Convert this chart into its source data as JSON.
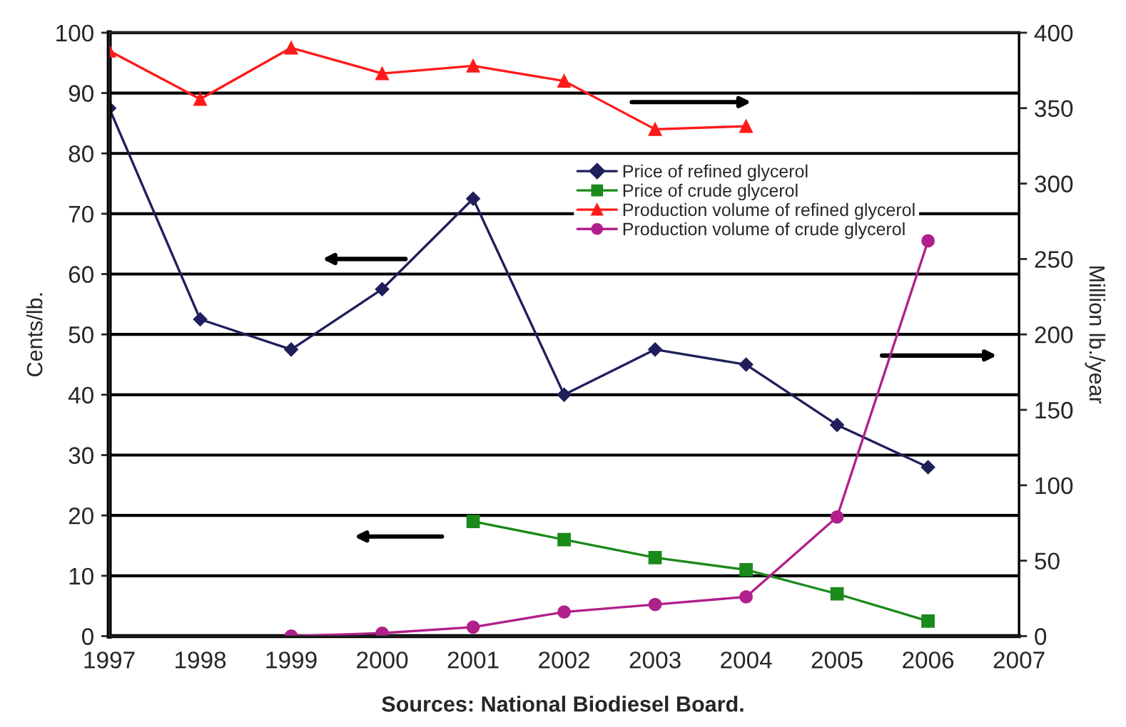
{
  "chart_data": {
    "type": "line",
    "xlabel": null,
    "ylabel": "Cents/lb.",
    "y2label": "Million lb./year",
    "x": [
      1997,
      1998,
      1999,
      2000,
      2001,
      2002,
      2003,
      2004,
      2005,
      2006
    ],
    "series": [
      {
        "name": "Price of refined glycerol",
        "color": "#1f1f5c",
        "marker": "diamond",
        "values": [
          87.5,
          52.5,
          47.5,
          57.5,
          72.5,
          40,
          47.5,
          45,
          35,
          28
        ]
      },
      {
        "name": "Price of crude glycerol",
        "color": "#1a8a1a",
        "marker": "square",
        "values": [
          null,
          null,
          null,
          null,
          19,
          16,
          13,
          11,
          7,
          2.5
        ]
      },
      {
        "name": "Production volume of refined glycerol",
        "color": "#ff1a1a",
        "marker": "triangle",
        "axis": "y2",
        "values": [
          388,
          356,
          390,
          373,
          378,
          368,
          336,
          338,
          null,
          null
        ]
      },
      {
        "name": "Production volume of crude glycerol",
        "color": "#b0208a",
        "marker": "circle",
        "axis": "y2",
        "values": [
          null,
          null,
          0,
          2,
          6,
          16,
          21,
          26,
          79,
          262
        ]
      }
    ],
    "xlim": [
      1997,
      2007
    ],
    "xticks": [
      1997,
      1998,
      1999,
      2000,
      2001,
      2002,
      2003,
      2004,
      2005,
      2006,
      2007
    ],
    "ylim": [
      0,
      100
    ],
    "yticks": [
      0,
      10,
      20,
      30,
      40,
      50,
      60,
      70,
      80,
      90,
      100
    ],
    "y2lim": [
      0,
      400
    ],
    "y2ticks": [
      0,
      50,
      100,
      150,
      200,
      250,
      300,
      350,
      400
    ],
    "grid": "y",
    "legend": "right",
    "annotations": [
      "Sources: National Biodiesel Board."
    ]
  }
}
